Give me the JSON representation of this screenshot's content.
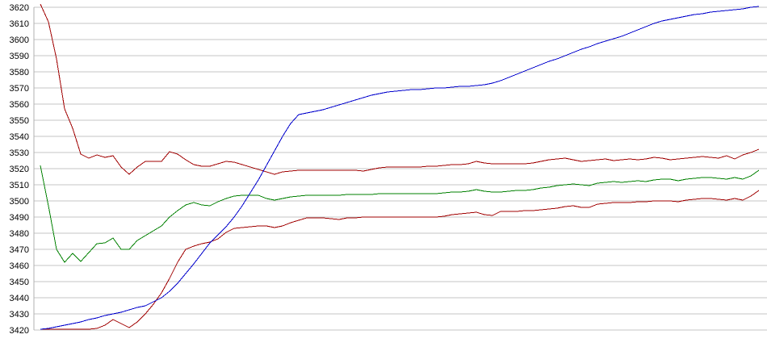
{
  "chart_data": {
    "type": "line",
    "title": "",
    "xlabel": "",
    "ylabel": "",
    "grid": true,
    "legend": "none",
    "y_axis": {
      "min": 3420,
      "max": 3620,
      "step": 10,
      "ticks": [
        3620,
        3610,
        3600,
        3590,
        3580,
        3570,
        3560,
        3550,
        3540,
        3530,
        3520,
        3510,
        3500,
        3490,
        3480,
        3470,
        3460,
        3450,
        3440,
        3430,
        3420
      ]
    },
    "colors": {
      "gridline": "#c6c6c6",
      "axis": "#b0b0b0",
      "label": "#000000",
      "red": "#a00000",
      "green": "#008000",
      "blue": "#0000cc"
    },
    "series": [
      {
        "name": "red-upper-line",
        "color": "#a00000",
        "values": [
          3622,
          3611,
          3588,
          3557,
          3545,
          3529,
          3526.5,
          3528.5,
          3527,
          3528,
          3521,
          3516.5,
          3521,
          3524.5,
          3524.5,
          3524.5,
          3530.5,
          3529,
          3525.5,
          3522.5,
          3521.5,
          3521.5,
          3523,
          3524.5,
          3524,
          3522.5,
          3521,
          3519.5,
          3518,
          3516.5,
          3518,
          3518.5,
          3519,
          3519,
          3519,
          3519,
          3519,
          3519,
          3519,
          3519,
          3518.5,
          3519.5,
          3520.5,
          3521,
          3521,
          3521,
          3521,
          3521,
          3521.5,
          3521.5,
          3522,
          3522.5,
          3522.5,
          3523,
          3524.5,
          3523.5,
          3523,
          3523,
          3523,
          3523,
          3523,
          3523.5,
          3524.5,
          3525.5,
          3526,
          3526.5,
          3525.5,
          3524.5,
          3525,
          3525.5,
          3526,
          3525,
          3525.5,
          3526,
          3525.5,
          3526,
          3527,
          3526.5,
          3525.5,
          3526,
          3526.5,
          3527,
          3527.5,
          3527,
          3526.5,
          3528,
          3526,
          3528.5,
          3530,
          3532
        ]
      },
      {
        "name": "green-middle-line",
        "color": "#008000",
        "values": [
          3522,
          3497,
          3470,
          3462,
          3467.5,
          3462.5,
          3468,
          3473.5,
          3474,
          3477,
          3470,
          3470,
          3475.5,
          3478.5,
          3481.5,
          3484.5,
          3490,
          3494,
          3497.5,
          3499,
          3497.5,
          3497,
          3499.5,
          3501.5,
          3503,
          3503.5,
          3503.5,
          3503.5,
          3501.5,
          3500.5,
          3501.5,
          3502.5,
          3503,
          3503.5,
          3503.5,
          3503.5,
          3503.5,
          3503.5,
          3504,
          3504,
          3504,
          3504,
          3504.5,
          3504.5,
          3504.5,
          3504.5,
          3504.5,
          3504.5,
          3504.5,
          3504.5,
          3505,
          3505.5,
          3505.5,
          3506,
          3507,
          3506,
          3505.5,
          3505.5,
          3506,
          3506.5,
          3506.5,
          3507,
          3508,
          3508.5,
          3509.5,
          3510,
          3510.5,
          3510,
          3509.5,
          3511,
          3511.5,
          3512,
          3511.5,
          3512,
          3512.5,
          3512,
          3513,
          3513.5,
          3513.5,
          3512.5,
          3513.5,
          3514,
          3514.5,
          3514.5,
          3514,
          3513.5,
          3514.5,
          3513.5,
          3515.5,
          3519
        ]
      },
      {
        "name": "red-lower-line",
        "color": "#a00000",
        "values": [
          3420.5,
          3420.5,
          3420.5,
          3420.5,
          3420.5,
          3420.5,
          3420.5,
          3421,
          3423,
          3426.5,
          3424,
          3421.5,
          3425,
          3430,
          3436,
          3443,
          3452,
          3462,
          3470,
          3472,
          3473.5,
          3474.5,
          3476.5,
          3480.5,
          3483,
          3483.5,
          3484,
          3484.5,
          3484.5,
          3483.5,
          3484.5,
          3486.5,
          3488,
          3489.5,
          3489.5,
          3489.5,
          3489,
          3488.5,
          3489.5,
          3489.5,
          3490,
          3490,
          3490,
          3490,
          3490,
          3490,
          3490,
          3490,
          3490,
          3490,
          3490.5,
          3491.5,
          3492,
          3492.5,
          3493,
          3491.5,
          3491,
          3493.5,
          3493.5,
          3493.5,
          3494,
          3494,
          3494.5,
          3495,
          3495.5,
          3496.5,
          3497,
          3496,
          3496,
          3498,
          3498.5,
          3499,
          3499,
          3499,
          3499.5,
          3499.5,
          3500,
          3500,
          3500,
          3499.5,
          3500.5,
          3501,
          3501.5,
          3501.5,
          3501,
          3500.5,
          3501.5,
          3500.5,
          3503,
          3506.5
        ]
      },
      {
        "name": "blue-line",
        "color": "#0000cc",
        "values": [
          3420.5,
          3421,
          3422,
          3423,
          3424,
          3425,
          3426.5,
          3427.5,
          3429,
          3430,
          3431,
          3432.5,
          3434,
          3435,
          3437.5,
          3440,
          3444,
          3449,
          3455,
          3461,
          3467.5,
          3474,
          3479,
          3484,
          3490,
          3497,
          3505,
          3513,
          3522,
          3531,
          3540,
          3548,
          3553.5,
          3554.5,
          3555.5,
          3556.5,
          3558,
          3559.5,
          3561,
          3562.5,
          3564,
          3565.5,
          3566.5,
          3567.5,
          3568,
          3568.5,
          3569,
          3569,
          3569.5,
          3570,
          3570,
          3570.5,
          3571,
          3571,
          3571.5,
          3572,
          3573,
          3574.5,
          3576.5,
          3578.5,
          3580.5,
          3582.5,
          3584.5,
          3586.5,
          3588,
          3590,
          3592,
          3594,
          3595.5,
          3597.5,
          3599,
          3600.5,
          3602,
          3604,
          3606,
          3608,
          3610,
          3611.5,
          3612.5,
          3613.5,
          3614.5,
          3615.5,
          3616,
          3617,
          3617.5,
          3618,
          3618.5,
          3619,
          3620,
          3620.5
        ]
      }
    ]
  }
}
